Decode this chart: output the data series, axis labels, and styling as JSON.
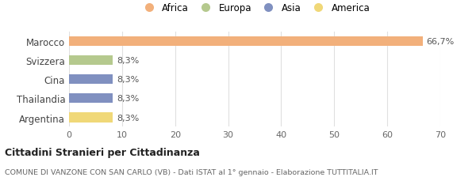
{
  "categories": [
    "Marocco",
    "Svizzera",
    "Cina",
    "Thailandia",
    "Argentina"
  ],
  "values": [
    66.7,
    8.3,
    8.3,
    8.3,
    8.3
  ],
  "bar_colors": [
    "#f2b07b",
    "#b5c98e",
    "#8090c0",
    "#8090c0",
    "#f0d878"
  ],
  "bar_labels": [
    "66,7%",
    "8,3%",
    "8,3%",
    "8,3%",
    "8,3%"
  ],
  "legend_labels": [
    "Africa",
    "Europa",
    "Asia",
    "America"
  ],
  "legend_colors": [
    "#f2b07b",
    "#b5c98e",
    "#8090c0",
    "#f0d878"
  ],
  "xlim": [
    0,
    70
  ],
  "xticks": [
    0,
    10,
    20,
    30,
    40,
    50,
    60,
    70
  ],
  "title_bold": "Cittadini Stranieri per Cittadinanza",
  "subtitle": "COMUNE DI VANZONE CON SAN CARLO (VB) - Dati ISTAT al 1° gennaio - Elaborazione TUTTITALIA.IT",
  "background_color": "#ffffff",
  "grid_color": "#e0e0e0"
}
